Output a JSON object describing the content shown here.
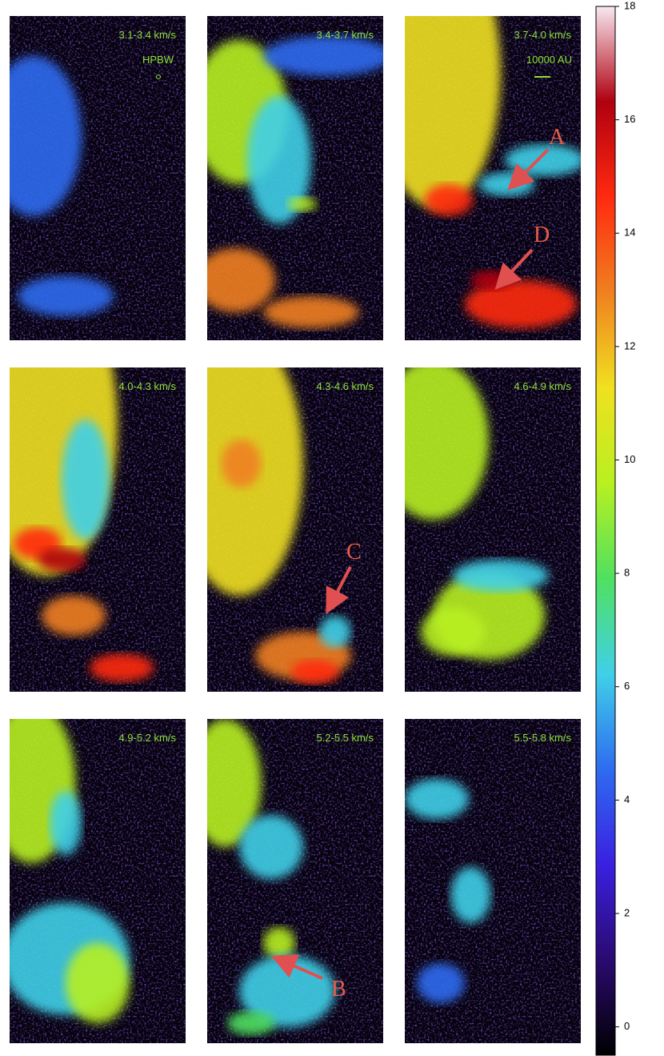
{
  "chart_data": {
    "type": "heatmap",
    "panels": [
      {
        "label": "3.1-3.4 km/s"
      },
      {
        "label": "3.4-3.7 km/s"
      },
      {
        "label": "3.7-4.0 km/s"
      },
      {
        "label": "4.0-4.3 km/s"
      },
      {
        "label": "4.3-4.6 km/s"
      },
      {
        "label": "4.6-4.9 km/s"
      },
      {
        "label": "4.9-5.2 km/s"
      },
      {
        "label": "5.2-5.5 km/s"
      },
      {
        "label": "5.5-5.8 km/s"
      }
    ],
    "beam_label": "HPBW",
    "scale_label": "10000 AU",
    "annotations": [
      "A",
      "D",
      "C",
      "B"
    ],
    "colormap": [
      "#000000",
      "#2a0a70",
      "#3a20e0",
      "#2e6cf0",
      "#40d0e8",
      "#50e060",
      "#b8f020",
      "#f0e020",
      "#f08020",
      "#ff2a10",
      "#b00010",
      "#f8e8f0"
    ],
    "ylim": [
      -0.5,
      18
    ],
    "yticks": [
      0,
      2,
      4,
      6,
      8,
      10,
      12,
      14,
      16,
      18
    ]
  }
}
